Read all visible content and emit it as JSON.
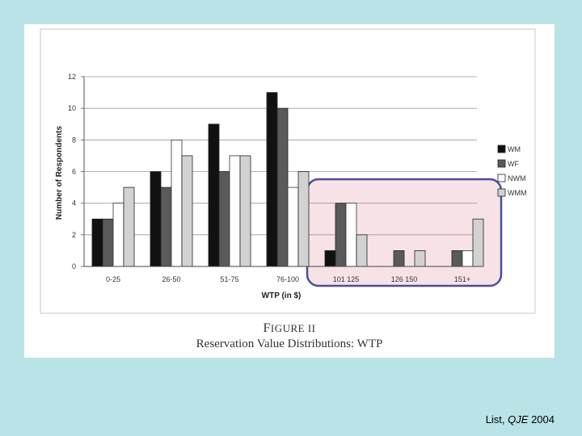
{
  "chart_data": {
    "type": "bar",
    "categories": [
      "0-25",
      "26-50",
      "51-75",
      "76-100",
      "101-125",
      "126-150",
      "151+"
    ],
    "series": [
      {
        "name": "WM",
        "values": [
          3,
          6,
          9,
          11,
          1,
          0,
          0
        ]
      },
      {
        "name": "WF",
        "values": [
          3,
          5,
          6,
          10,
          4,
          1,
          1
        ]
      },
      {
        "name": "NWM",
        "values": [
          4,
          8,
          7,
          5,
          4,
          0,
          1
        ]
      },
      {
        "name": "WMM",
        "values": [
          5,
          7,
          7,
          6,
          2,
          1,
          3
        ]
      }
    ],
    "tick_labels": [
      "0-25",
      "26-50",
      "51-75",
      "76-100",
      "101 125",
      "126 150",
      "151+"
    ],
    "xlabel": "WTP (in $)",
    "ylabel": "Number of Respondents",
    "ylim": [
      0,
      12
    ],
    "yticks": [
      0,
      2,
      4,
      6,
      8,
      10,
      12
    ],
    "grid": true,
    "legend_position": "right",
    "highlight": {
      "categories": [
        "101-125",
        "126-150",
        "151+"
      ],
      "fill": "#f7e3e6",
      "stroke": "#4a4f9c"
    },
    "series_colors": {
      "WM": "#111111",
      "WF": "#5a5a5a",
      "NWM": "#ffffff",
      "WMM": "#d2d2d2"
    }
  },
  "caption": {
    "title_initial": "F",
    "title_rest": "IGURE II",
    "subtitle": "Reservation Value Distributions: WTP"
  },
  "citation": {
    "prefix": "List, ",
    "journal": "QJE",
    "year": " 2004"
  }
}
